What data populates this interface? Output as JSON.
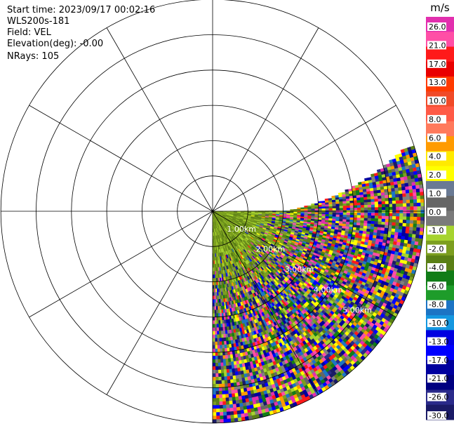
{
  "header": {
    "start_time": "Start time: 2023/09/17 00:02:16",
    "instrument": "WLS200s-181",
    "field": "Field: VEL",
    "elevation": "Elevation(deg): -0.00",
    "nrays": "NRays: 105"
  },
  "chart_data": {
    "type": "heatmap",
    "projection": "polar-ppi",
    "field": "VEL",
    "units": "m/s",
    "sector_azimuth_deg": [
      90,
      180
    ],
    "sector_far_edge_azimuth_deg": 70,
    "range_rings_km": [
      1,
      2,
      3,
      4,
      5,
      6
    ],
    "range_ring_labels": [
      "1.00km",
      "2.00km",
      "3.00km",
      "4.00km",
      "5.00km"
    ],
    "spokes_every_deg": 30,
    "near_range_velocity_ms": [
      -4.0,
      -2.0
    ],
    "colorbar": {
      "label": "m/s",
      "ticks": [
        "26.0",
        "21.0",
        "17.0",
        "13.0",
        "10.0",
        "8.0",
        "6.0",
        "4.0",
        "2.0",
        "1.0",
        "0.0",
        "-1.0",
        "-2.0",
        "-4.0",
        "-6.0",
        "-8.0",
        "-10.0",
        "-13.0",
        "-17.0",
        "-21.0",
        "-26.0",
        "-30.0"
      ],
      "colors": [
        "#e22fae",
        "#ff4fa6",
        "#ff1a1a",
        "#e90000",
        "#ff3a00",
        "#f04a28",
        "#ff5a46",
        "#ff7a5c",
        "#ff9b00",
        "#ffea00",
        "#ffff00",
        "#6a7a94",
        "#666666",
        "#7a7a7a",
        "#a6d32f",
        "#7c9e20",
        "#5a7f16",
        "#117c17",
        "#1e9c2a",
        "#1c74c4",
        "#1597e0",
        "#0000e0",
        "#0000ff",
        "#00009e",
        "#000080",
        "#2a2a8a",
        "#1a1a66"
      ]
    }
  }
}
